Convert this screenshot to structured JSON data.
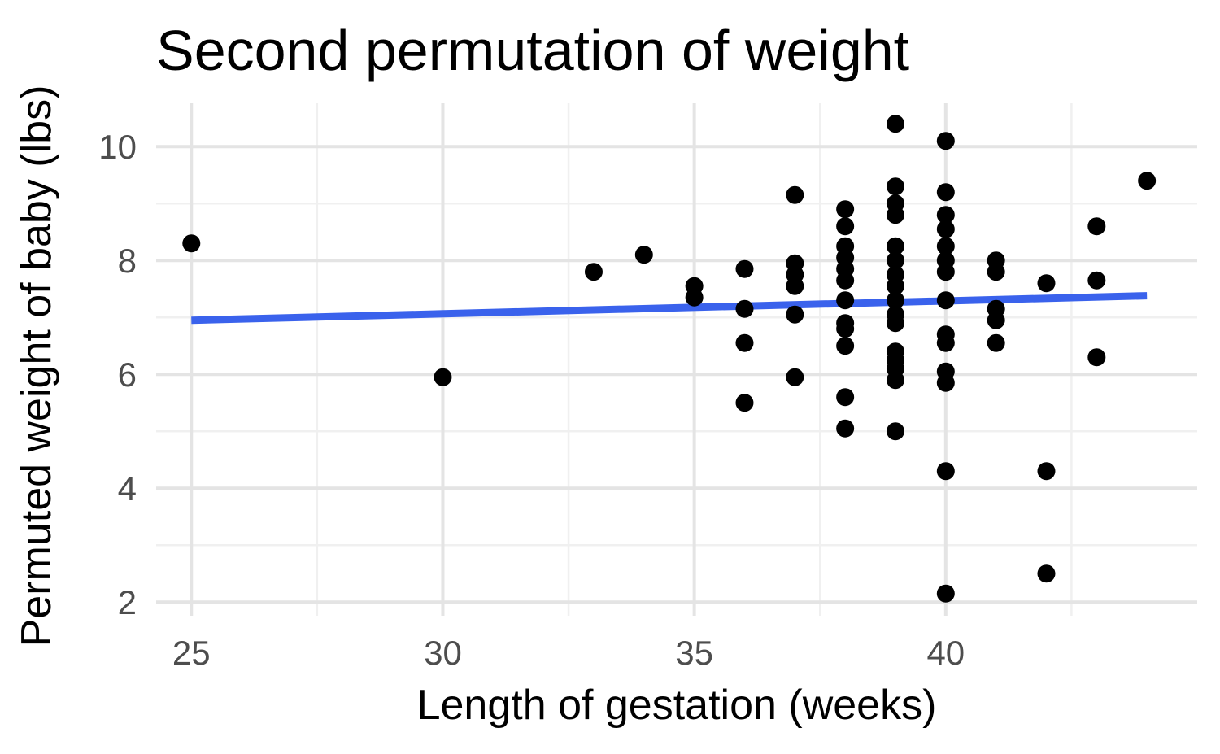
{
  "chart_data": {
    "type": "scatter",
    "title": "Second permutation of weight",
    "xlabel": "Length of gestation (weeks)",
    "ylabel": "Permuted weight of baby (lbs)",
    "xlim": [
      24.3,
      45.0
    ],
    "ylim": [
      1.76,
      10.76
    ],
    "x_ticks": [
      25,
      30,
      35,
      40
    ],
    "y_ticks": [
      2,
      4,
      6,
      8,
      10
    ],
    "x_minor_ticks": [
      27.5,
      32.5,
      37.5,
      42.5
    ],
    "y_minor_ticks": [
      3,
      5,
      7,
      9
    ],
    "grid": "on",
    "legend": "none",
    "points": [
      [
        25,
        8.3
      ],
      [
        30,
        5.95
      ],
      [
        33,
        7.8
      ],
      [
        34,
        8.1
      ],
      [
        35,
        7.55
      ],
      [
        35,
        7.35
      ],
      [
        36,
        7.85
      ],
      [
        36,
        7.15
      ],
      [
        36,
        6.55
      ],
      [
        36,
        5.5
      ],
      [
        37,
        9.15
      ],
      [
        37,
        7.95
      ],
      [
        37,
        7.75
      ],
      [
        37,
        7.55
      ],
      [
        37,
        7.05
      ],
      [
        37,
        5.95
      ],
      [
        38,
        8.9
      ],
      [
        38,
        8.6
      ],
      [
        38,
        8.25
      ],
      [
        38,
        8.05
      ],
      [
        38,
        7.85
      ],
      [
        38,
        7.65
      ],
      [
        38,
        7.3
      ],
      [
        38,
        6.9
      ],
      [
        38,
        6.8
      ],
      [
        38,
        6.5
      ],
      [
        38,
        5.6
      ],
      [
        38,
        5.05
      ],
      [
        39,
        10.4
      ],
      [
        39,
        9.3
      ],
      [
        39,
        9.0
      ],
      [
        39,
        8.8
      ],
      [
        39,
        8.25
      ],
      [
        39,
        8.0
      ],
      [
        39,
        7.75
      ],
      [
        39,
        7.55
      ],
      [
        39,
        7.3
      ],
      [
        39,
        7.05
      ],
      [
        39,
        6.9
      ],
      [
        39,
        6.4
      ],
      [
        39,
        6.25
      ],
      [
        39,
        6.1
      ],
      [
        39,
        5.9
      ],
      [
        39,
        5.0
      ],
      [
        40,
        10.1
      ],
      [
        40,
        9.2
      ],
      [
        40,
        8.8
      ],
      [
        40,
        8.55
      ],
      [
        40,
        8.25
      ],
      [
        40,
        8.0
      ],
      [
        40,
        7.8
      ],
      [
        40,
        7.3
      ],
      [
        40,
        6.7
      ],
      [
        40,
        6.55
      ],
      [
        40,
        6.05
      ],
      [
        40,
        5.85
      ],
      [
        40,
        4.3
      ],
      [
        40,
        2.15
      ],
      [
        41,
        8.0
      ],
      [
        41,
        7.8
      ],
      [
        41,
        7.15
      ],
      [
        41,
        6.95
      ],
      [
        41,
        6.55
      ],
      [
        42,
        7.6
      ],
      [
        42,
        4.3
      ],
      [
        42,
        2.5
      ],
      [
        43,
        8.6
      ],
      [
        43,
        7.65
      ],
      [
        43,
        6.3
      ],
      [
        44,
        9.4
      ]
    ],
    "trend_line": {
      "x": [
        25,
        44
      ],
      "y": [
        6.95,
        7.38
      ]
    },
    "colors": {
      "point": "#000000",
      "trend": "#3A62EC",
      "grid_major": "#E4E4E4",
      "grid_minor": "#F0F0F0",
      "tick_label": "#4d4d4d",
      "text": "#000000",
      "background": "#ffffff"
    }
  }
}
